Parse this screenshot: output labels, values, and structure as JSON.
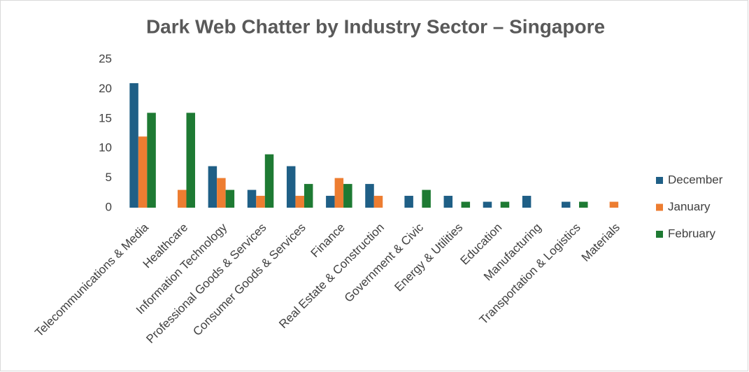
{
  "chart_data": {
    "type": "bar",
    "title": "Dark Web Chatter by Industry Sector – Singapore",
    "categories": [
      "Telecommunications & Media",
      "Healthcare",
      "Information Technology",
      "Professional Goods & Services",
      "Consumer Goods & Services",
      "Finance",
      "Real Estate & Construction",
      "Government & Civic",
      "Energy & Utilities",
      "Education",
      "Manufacturing",
      "Transportation & Logistics",
      "Materials"
    ],
    "series": [
      {
        "name": "December",
        "color": "#1f5f86",
        "values": [
          21,
          0,
          7,
          3,
          7,
          2,
          4,
          2,
          2,
          1,
          2,
          1,
          0
        ]
      },
      {
        "name": "January",
        "color": "#ed7d31",
        "values": [
          12,
          3,
          5,
          2,
          2,
          5,
          2,
          0,
          0,
          0,
          0,
          0,
          1
        ]
      },
      {
        "name": "February",
        "color": "#1e7a33",
        "values": [
          16,
          16,
          3,
          9,
          4,
          4,
          0,
          3,
          1,
          1,
          0,
          1,
          0
        ]
      }
    ],
    "ylim": [
      0,
      25
    ],
    "yticks": [
      0,
      5,
      10,
      15,
      20,
      25
    ],
    "grid": false,
    "legend": "right"
  }
}
